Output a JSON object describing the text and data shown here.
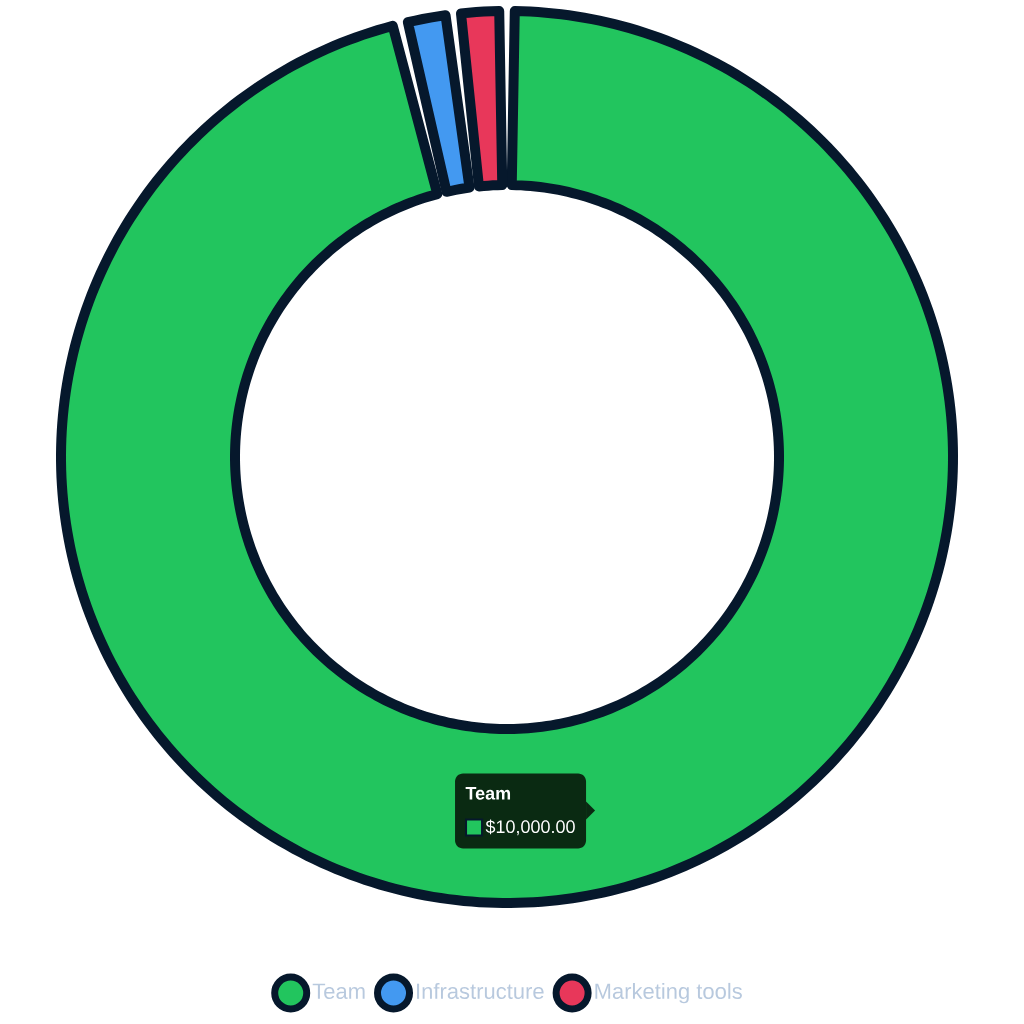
{
  "chart_data": {
    "type": "donut",
    "categories": [
      "Team",
      "Infrastructure",
      "Marketing tools"
    ],
    "values": [
      10000,
      200,
      200
    ],
    "colors": [
      "#22c55e",
      "#4399f1",
      "#e8375a"
    ],
    "value_labels": [
      "$10,000.00",
      null,
      null
    ],
    "legend": "bottom"
  }
}
